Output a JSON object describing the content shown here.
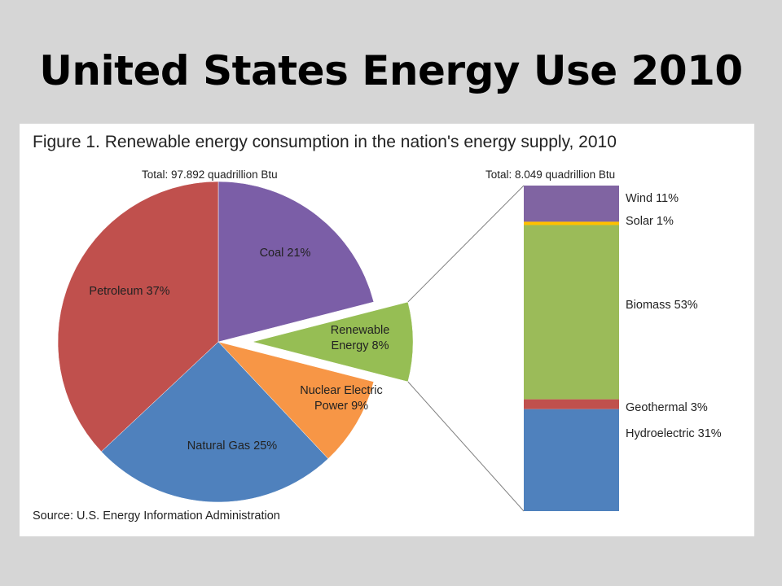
{
  "slide": {
    "title": "United States Energy Use 2010"
  },
  "figure": {
    "title": "Figure 1.  Renewable energy consumption in the nation's energy supply, 2010",
    "source": "Source:  U.S. Energy Information Administration"
  },
  "chart_data": [
    {
      "type": "pie",
      "total_label": "Total:  97.892 quadrillion Btu",
      "slices": [
        {
          "name": "Coal",
          "value": 21,
          "label": "Coal  21%",
          "color": "#7b5ea7"
        },
        {
          "name": "Renewable Energy",
          "value": 8,
          "label_lines": [
            "Renewable",
            "Energy  8%"
          ],
          "color": "#96be54",
          "exploded": true
        },
        {
          "name": "Nuclear Electric Power",
          "value": 9,
          "label_lines": [
            "Nuclear Electric",
            "Power  9%"
          ],
          "color": "#f79646"
        },
        {
          "name": "Natural Gas",
          "value": 25,
          "label": "Natural Gas  25%",
          "color": "#4f81bd"
        },
        {
          "name": "Petroleum",
          "value": 37,
          "label": "Petroleum  37%",
          "color": "#c0504d"
        }
      ]
    },
    {
      "type": "bar",
      "stacked": true,
      "total_label": "Total:  8.049 quadrillion Btu",
      "segments": [
        {
          "name": "Wind",
          "value": 11,
          "label": "Wind  11%",
          "color": "#8064a2"
        },
        {
          "name": "Solar",
          "value": 1,
          "label": "Solar  1%",
          "color": "#ffc000"
        },
        {
          "name": "Biomass",
          "value": 53,
          "label": "Biomass  53%",
          "color": "#9bbb59"
        },
        {
          "name": "Geothermal",
          "value": 3,
          "label": "Geothermal  3%",
          "color": "#c0504d"
        },
        {
          "name": "Hydroelectric",
          "value": 31,
          "label": "Hydroelectric  31%",
          "color": "#4f81bd"
        }
      ]
    }
  ]
}
